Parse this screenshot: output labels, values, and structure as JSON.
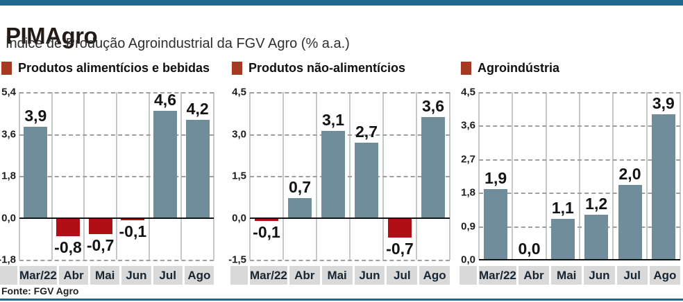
{
  "page": {
    "title": "PIMAgro",
    "subtitle": "Índice de Produção Agroindustrial da FGV Agro (% a.a.)",
    "source": "Fonte: FGV Agro"
  },
  "colors": {
    "accent": "#1d6a8e",
    "title_color": "#221c18",
    "bar_positive": "#6f8d9b",
    "bar_negative": "#b01015",
    "legend_marker": "#a6391f",
    "band": "#d9d9d9"
  },
  "chart_data": [
    {
      "type": "bar",
      "title": "Produtos alimentícios e bebidas",
      "categories": [
        "Mar/22",
        "Abr",
        "Mai",
        "Jun",
        "Jul",
        "Ago"
      ],
      "values": [
        3.9,
        -0.8,
        -0.7,
        -0.1,
        4.6,
        4.2
      ],
      "value_labels": [
        "3,9",
        "-0,8",
        "-0,7",
        "-0,1",
        "4,6",
        "4,2"
      ],
      "ylim": [
        -1.8,
        5.4
      ],
      "yticks": [
        5.4,
        3.6,
        1.8,
        0.0,
        -1.8
      ],
      "ytick_labels": [
        "5,4",
        "3,6",
        "1,8",
        "0,0",
        "-1,8"
      ],
      "grid": "dashed horizontal, solid vertical separators",
      "legend_position": "top-left"
    },
    {
      "type": "bar",
      "title": "Produtos não-alimentícios",
      "categories": [
        "Mar/22",
        "Abr",
        "Mai",
        "Jun",
        "Jul",
        "Ago"
      ],
      "values": [
        -0.1,
        0.7,
        3.1,
        2.7,
        -0.7,
        3.6
      ],
      "value_labels": [
        "-0,1",
        "0,7",
        "3,1",
        "2,7",
        "-0,7",
        "3,6"
      ],
      "ylim": [
        -1.5,
        4.5
      ],
      "yticks": [
        4.5,
        3.0,
        1.5,
        0.0,
        -1.5
      ],
      "ytick_labels": [
        "4,5",
        "3,0",
        "1,5",
        "0,0",
        "-1,5"
      ],
      "grid": "dashed horizontal, solid vertical separators",
      "legend_position": "top-left"
    },
    {
      "type": "bar",
      "title": "Agroindústria",
      "categories": [
        "Mar/22",
        "Abr",
        "Mai",
        "Jun",
        "Jul",
        "Ago"
      ],
      "values": [
        1.9,
        0.0,
        1.1,
        1.2,
        2.0,
        3.9
      ],
      "value_labels": [
        "1,9",
        "0,0",
        "1,1",
        "1,2",
        "2,0",
        "3,9"
      ],
      "ylim": [
        0.0,
        4.5
      ],
      "yticks": [
        4.5,
        3.6,
        2.7,
        1.8,
        0.9,
        0.0
      ],
      "ytick_labels": [
        "4,5",
        "3,6",
        "2,7",
        "1,8",
        "0,9",
        "0,0"
      ],
      "grid": "dashed horizontal, solid vertical separators",
      "legend_position": "top-left"
    }
  ]
}
